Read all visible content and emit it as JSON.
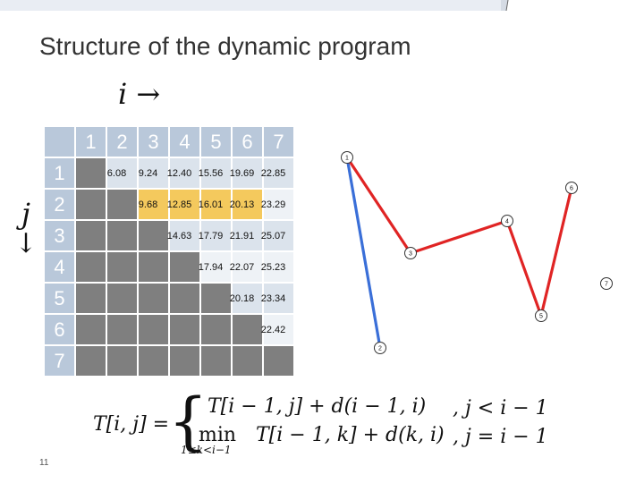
{
  "title": "Structure of the dynamic program",
  "axis_i": "i →",
  "axis_j": "j",
  "axis_j_arrow": "↓",
  "table": {
    "col_headers": [
      "1",
      "2",
      "3",
      "4",
      "5",
      "6",
      "7"
    ],
    "row_headers": [
      "1",
      "2",
      "3",
      "4",
      "5",
      "6",
      "7"
    ],
    "values": {
      "1": {
        "2": "6.08",
        "3": "9.24",
        "4": "12.40",
        "5": "15.56",
        "6": "19.69",
        "7": "22.85"
      },
      "2": {
        "3": "9.68",
        "4": "12.85",
        "5": "16.01",
        "6": "20.13",
        "7": "23.29"
      },
      "3": {
        "4": "14.63",
        "5": "17.79",
        "6": "21.91",
        "7": "25.07"
      },
      "4": {
        "5": "17.94",
        "6": "22.07",
        "7": "25.23"
      },
      "5": {
        "6": "20.18",
        "7": "23.34"
      },
      "6": {
        "7": "22.42"
      }
    },
    "highlighted": [
      [
        2,
        3
      ],
      [
        2,
        4
      ],
      [
        2,
        5
      ],
      [
        2,
        6
      ]
    ]
  },
  "graph": {
    "nodes": [
      "1",
      "6",
      "4",
      "3",
      "7",
      "5",
      "2"
    ],
    "colors": {
      "red": "#e02424",
      "blue": "#3a6fd8"
    }
  },
  "formula": {
    "lhs": "T[i, j] =",
    "case1": "T[i − 1, j] + d(i − 1, i)",
    "min": "min",
    "sub": "1≤k<i−1",
    "case2": "T[i − 1, k] + d(k, i)",
    "cond1": ", j < i − 1",
    "cond2": ", j = i − 1"
  },
  "page_number": "11"
}
